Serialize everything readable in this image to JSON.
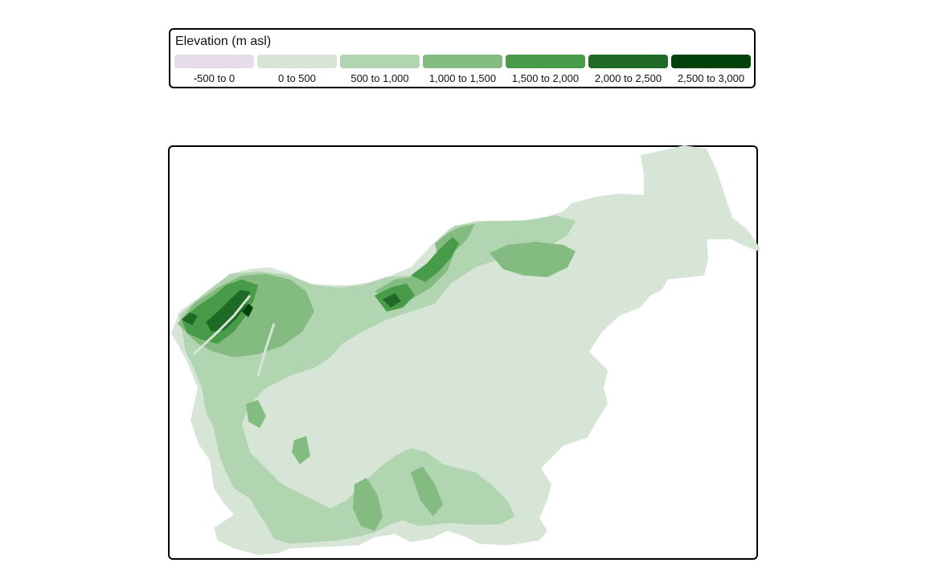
{
  "legend": {
    "title": "Elevation (m asl)",
    "classes": [
      {
        "label": "-500 to 0",
        "color": "#e7dcec"
      },
      {
        "label": "0 to 500",
        "color": "#d6e5d6"
      },
      {
        "label": "500 to 1,000",
        "color": "#b2d5b1"
      },
      {
        "label": "1,000 to 1,500",
        "color": "#83bb80"
      },
      {
        "label": "1,500 to 2,000",
        "color": "#489c49"
      },
      {
        "label": "2,000 to 2,500",
        "color": "#1f6a26"
      },
      {
        "label": "2,500 to 3,000",
        "color": "#00420a"
      }
    ]
  },
  "map": {
    "region": "Slovenia",
    "variable": "elevation"
  }
}
